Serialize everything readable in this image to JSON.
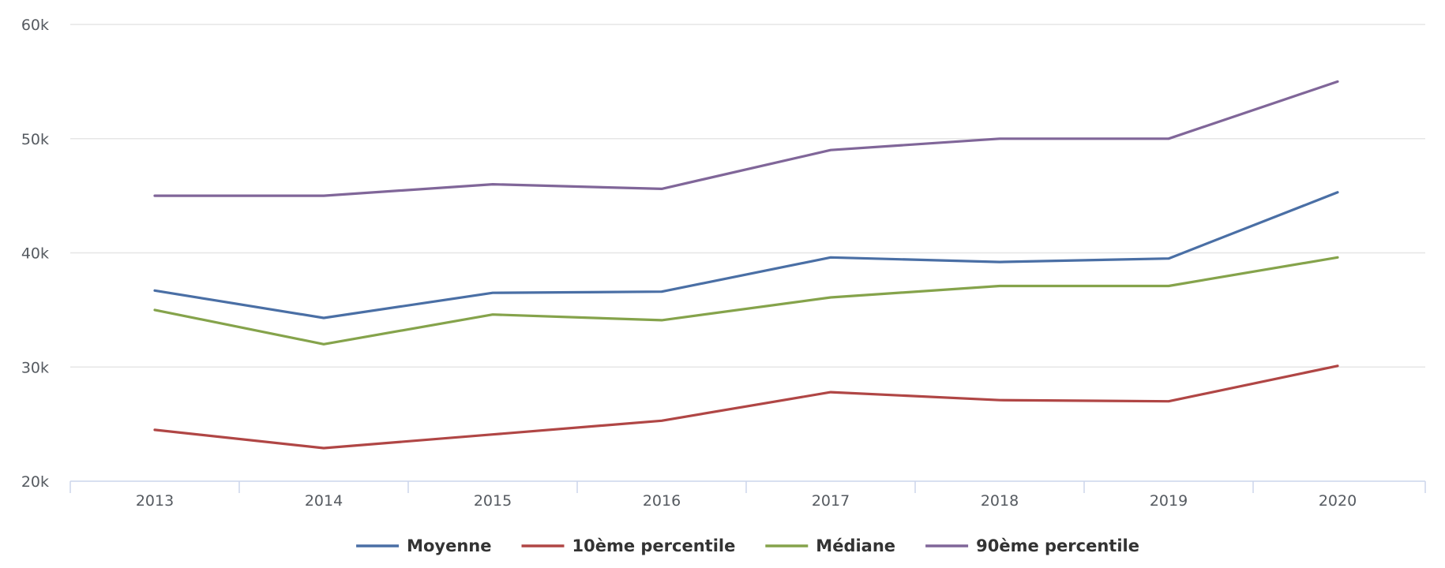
{
  "chart_data": {
    "type": "line",
    "title": "",
    "xlabel": "",
    "ylabel": "",
    "categories": [
      "2013",
      "2014",
      "2015",
      "2016",
      "2017",
      "2018",
      "2019",
      "2020"
    ],
    "ylim": [
      20000,
      60000
    ],
    "yticks": [
      20000,
      30000,
      40000,
      50000,
      60000
    ],
    "ytick_labels": [
      "20k",
      "30k",
      "40k",
      "50k",
      "60k"
    ],
    "grid": true,
    "legend_position": "bottom-center",
    "series": [
      {
        "name": "Moyenne",
        "color": "#4a6fa5",
        "values": [
          36700,
          34300,
          36500,
          36600,
          39600,
          39200,
          39500,
          45300
        ]
      },
      {
        "name": "10ème percentile",
        "color": "#b04645",
        "values": [
          24500,
          22900,
          24100,
          25300,
          27800,
          27100,
          27000,
          30100
        ]
      },
      {
        "name": "Médiane",
        "color": "#85a34b",
        "values": [
          35000,
          32000,
          34600,
          34100,
          36100,
          37100,
          37100,
          39600
        ]
      },
      {
        "name": "90ème percentile",
        "color": "#806699",
        "values": [
          45000,
          45000,
          46000,
          45600,
          49000,
          50000,
          50000,
          55000
        ]
      }
    ]
  }
}
